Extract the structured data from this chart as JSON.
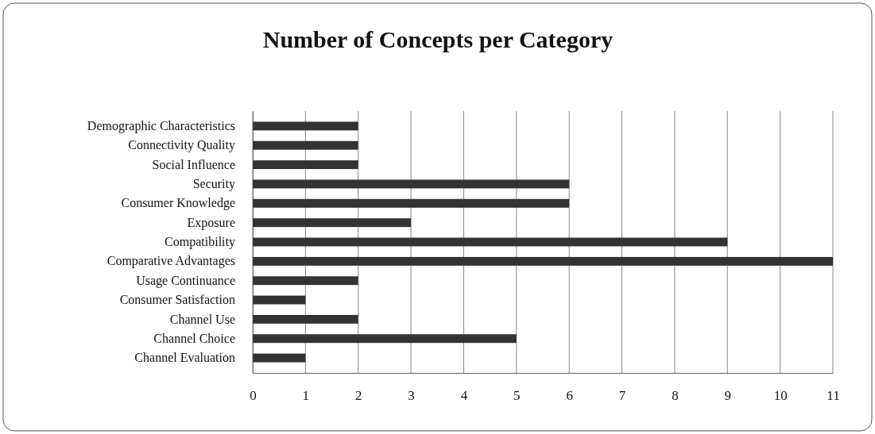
{
  "chart_data": {
    "type": "bar",
    "orientation": "horizontal",
    "title": "Number of Concepts per Category",
    "categories": [
      "Demographic Characteristics",
      "Connectivity Quality",
      "Social Influence",
      "Security",
      "Consumer Knowledge",
      "Exposure",
      "Compatibility",
      "Comparative Advantages",
      "Usage Continuance",
      "Consumer Satisfaction",
      "Channel Use",
      "Channel Choice",
      "Channel Evaluation"
    ],
    "values": [
      2,
      2,
      2,
      6,
      6,
      3,
      9,
      11,
      2,
      1,
      2,
      5,
      1
    ],
    "color": "#333333",
    "xlim": [
      0,
      11
    ],
    "xticks": [
      0,
      1,
      2,
      3,
      4,
      5,
      6,
      7,
      8,
      9,
      10,
      11
    ],
    "grid": "x"
  }
}
